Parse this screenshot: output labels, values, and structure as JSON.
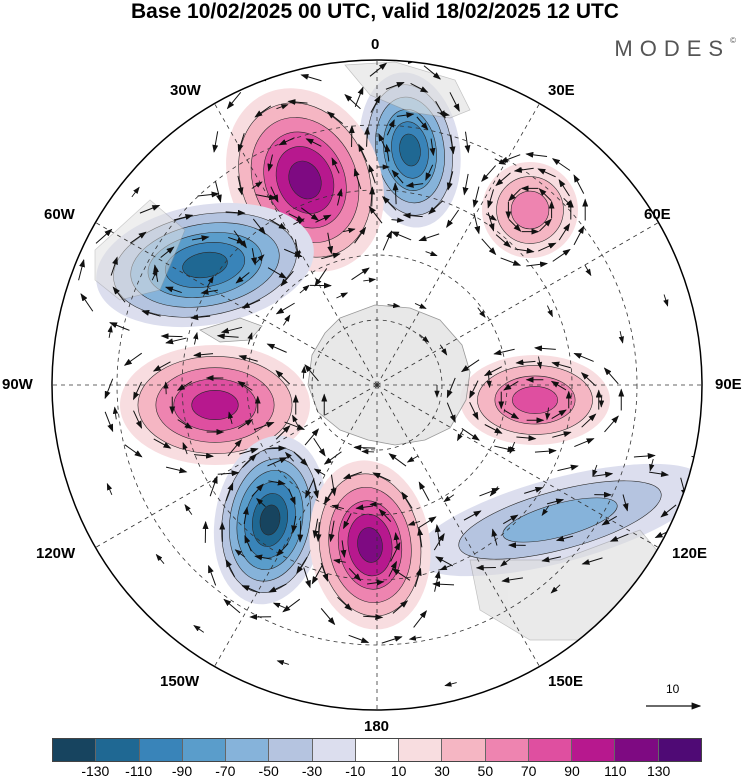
{
  "title": "Base 10/02/2025 00 UTC, valid 18/02/2025 12 UTC",
  "logo": "MODES",
  "logo_mark": "©",
  "map": {
    "projection": "south-polar-stereographic",
    "longitude_labels": [
      "0",
      "30E",
      "60E",
      "90E",
      "120E",
      "150E",
      "180",
      "150W",
      "120W",
      "90W",
      "60W",
      "30W"
    ],
    "anomaly_centers": [
      {
        "sign": "negative",
        "lon_label": "near 30W-0",
        "value_class": "-110"
      },
      {
        "sign": "positive",
        "lon_label": "near 30W",
        "value_class": "110"
      },
      {
        "sign": "positive",
        "lon_label": "near 40E",
        "value_class": "50"
      },
      {
        "sign": "negative",
        "lon_label": "near 60W",
        "value_class": "-110"
      },
      {
        "sign": "positive",
        "lon_label": "near 90W",
        "value_class": "90"
      },
      {
        "sign": "positive",
        "lon_label": "near 90E",
        "value_class": "70"
      },
      {
        "sign": "negative",
        "lon_label": "near 120E",
        "value_class": "-50"
      },
      {
        "sign": "negative",
        "lon_label": "near 150W",
        "value_class": "-130"
      },
      {
        "sign": "positive",
        "lon_label": "near 180",
        "value_class": "110"
      }
    ],
    "reference_vector_label": "10"
  },
  "legend": {
    "colors": [
      "#17445f",
      "#1f6893",
      "#3984b9",
      "#5a9dcb",
      "#86b3da",
      "#b5c4e0",
      "#dcdeee",
      "#ffffff",
      "#f8dde0",
      "#f5b6c3",
      "#ee84b0",
      "#df4fa0",
      "#b7188e",
      "#7e0a82",
      "#4f0a75"
    ],
    "ticks": [
      "-130",
      "-110",
      "-90",
      "-70",
      "-50",
      "-30",
      "-10",
      "10",
      "30",
      "50",
      "70",
      "90",
      "110",
      "130"
    ]
  }
}
